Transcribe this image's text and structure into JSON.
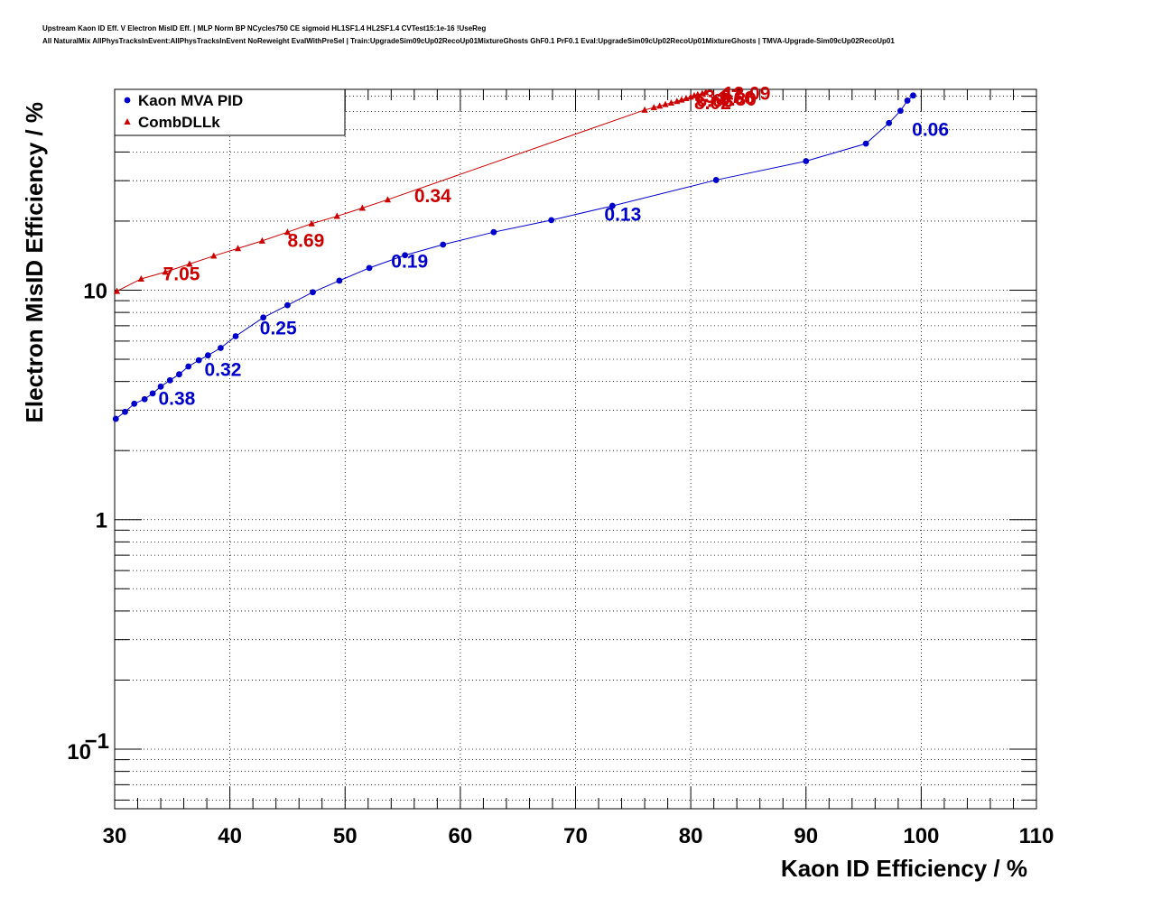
{
  "header": {
    "line1": "Upstream Kaon ID Eff. V Electron MisID Eff. | MLP Norm BP NCycles750 CE sigmoid HL1SF1.4 HL2SF1.4 CVTest15:1e-16 !UseReg",
    "line2": "All NaturalMix AllPhysTracksInEvent:AllPhysTracksInEvent NoReweight EvalWithPreSel | Train:UpgradeSim09cUp02RecoUp01MixtureGhosts GhF0.1 PrF0.1 Eval:UpgradeSim09cUp02RecoUp01MixtureGhosts | TMVA-Upgrade-Sim09cUp02RecoUp01"
  },
  "chart_data": {
    "type": "line",
    "xlabel": "Kaon ID Efficiency / %",
    "ylabel": "Electron MisID Efficiency / %",
    "xlim": [
      30,
      110
    ],
    "ylim": [
      0.055,
      75
    ],
    "yscale": "log",
    "grid": true,
    "x_ticks": [
      30,
      40,
      50,
      60,
      70,
      80,
      90,
      100,
      110
    ],
    "x_tick_labels": [
      "30",
      "40",
      "50",
      "60",
      "70",
      "80",
      "90",
      "100",
      "110"
    ],
    "y_ticks": [
      0.1,
      1,
      10
    ],
    "y_tick_labels": [
      {
        "base": "10",
        "exp": "−1"
      },
      {
        "base": "1",
        "exp": ""
      },
      {
        "base": "10",
        "exp": ""
      }
    ],
    "legend": {
      "position": "top-left"
    },
    "series": [
      {
        "name": "Kaon MVA PID",
        "color": "#0000cc",
        "marker": "circle",
        "x": [
          30.1,
          30.9,
          31.7,
          32.6,
          33.3,
          34.0,
          34.8,
          35.6,
          36.4,
          37.3,
          38.1,
          39.2,
          40.5,
          42.9,
          45.0,
          47.2,
          49.5,
          52.1,
          55.2,
          58.5,
          62.9,
          67.9,
          73.2,
          82.2,
          90.0,
          95.2,
          97.2,
          98.2,
          98.8,
          99.3
        ],
        "y": [
          2.75,
          2.95,
          3.2,
          3.35,
          3.55,
          3.8,
          4.05,
          4.3,
          4.65,
          4.95,
          5.2,
          5.6,
          6.3,
          7.6,
          8.6,
          9.8,
          11.0,
          12.5,
          14.2,
          15.8,
          17.9,
          20.2,
          23.3,
          30.2,
          36.5,
          43.5,
          53.5,
          60.5,
          67.0,
          70.5
        ],
        "annotations": [
          {
            "text": "0.38",
            "x": 33.8,
            "y": 3.4
          },
          {
            "text": "0.32",
            "x": 37.8,
            "y": 4.55
          },
          {
            "text": "0.25",
            "x": 42.6,
            "y": 6.9
          },
          {
            "text": "0.19",
            "x": 54.0,
            "y": 13.5
          },
          {
            "text": "0.13",
            "x": 72.5,
            "y": 21.6
          },
          {
            "text": "0.06",
            "x": 99.2,
            "y": 50.5
          }
        ]
      },
      {
        "name": "CombDLLk",
        "color": "#cc0000",
        "marker": "triangle",
        "x": [
          30.2,
          32.3,
          34.4,
          36.5,
          38.6,
          40.7,
          42.8,
          45.0,
          47.1,
          49.3,
          51.5,
          53.7,
          76.0,
          76.8,
          77.3,
          77.8,
          78.3,
          78.8,
          79.2,
          79.6,
          80.0,
          80.3,
          80.6,
          81.0,
          81.3
        ],
        "y": [
          9.9,
          11.2,
          12.0,
          13.0,
          14.1,
          15.2,
          16.4,
          17.9,
          19.5,
          21.0,
          22.8,
          24.8,
          61.0,
          62.5,
          63.5,
          64.5,
          65.5,
          66.5,
          67.5,
          68.5,
          69.5,
          70.5,
          71.2,
          72.0,
          72.8
        ],
        "annotations": [
          {
            "text": "7.05",
            "x": 34.2,
            "y": 11.9
          },
          {
            "text": "8.69",
            "x": 45.0,
            "y": 16.6
          },
          {
            "text": "0.34",
            "x": 56.0,
            "y": 26.0
          },
          {
            "text": "6.63",
            "x": 80.5,
            "y": 67.5
          },
          {
            "text": "8.02",
            "x": 80.3,
            "y": 66.0
          },
          {
            "text": "-1.66",
            "x": 81.8,
            "y": 69.5
          },
          {
            "text": "9.80",
            "x": 82.5,
            "y": 68.5
          },
          {
            "text": "12.09",
            "x": 82.8,
            "y": 72.5
          },
          {
            "text": "3.37",
            "x": 81.2,
            "y": 70.3
          }
        ]
      }
    ]
  }
}
